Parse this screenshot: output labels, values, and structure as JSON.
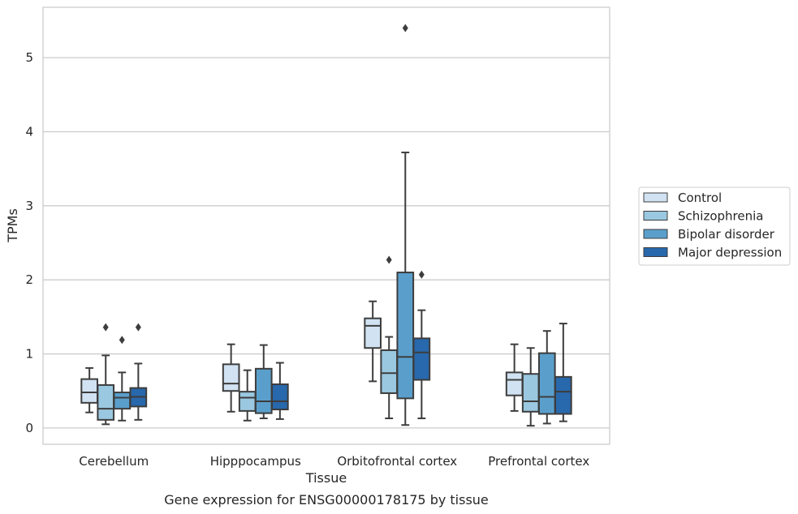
{
  "caption": "Gene expression for ENSG00000178175 by tissue",
  "chart_data": {
    "type": "box",
    "xlabel": "Tissue",
    "ylabel": "TPMs",
    "categories": [
      "Cerebellum",
      "Hipppocampus",
      "Orbitofrontal cortex",
      "Prefrontal cortex"
    ],
    "yticks": [
      0,
      1,
      2,
      3,
      4,
      5
    ],
    "ylim": [
      -0.22,
      5.68
    ],
    "grid": true,
    "legend_position": "right",
    "series": [
      {
        "name": "Control",
        "color": "#d1e2f2",
        "boxes": [
          {
            "whisker_low": 0.21,
            "q1": 0.34,
            "median": 0.48,
            "q3": 0.66,
            "whisker_high": 0.81,
            "outliers": []
          },
          {
            "whisker_low": 0.22,
            "q1": 0.5,
            "median": 0.6,
            "q3": 0.86,
            "whisker_high": 1.13,
            "outliers": []
          },
          {
            "whisker_low": 0.63,
            "q1": 1.08,
            "median": 1.38,
            "q3": 1.48,
            "whisker_high": 1.71,
            "outliers": []
          },
          {
            "whisker_low": 0.23,
            "q1": 0.44,
            "median": 0.65,
            "q3": 0.75,
            "whisker_high": 1.13,
            "outliers": []
          }
        ]
      },
      {
        "name": "Schizophrenia",
        "color": "#9ac8e0",
        "boxes": [
          {
            "whisker_low": 0.05,
            "q1": 0.11,
            "median": 0.26,
            "q3": 0.58,
            "whisker_high": 0.98,
            "outliers": [
              1.36
            ]
          },
          {
            "whisker_low": 0.1,
            "q1": 0.23,
            "median": 0.41,
            "q3": 0.49,
            "whisker_high": 0.78,
            "outliers": []
          },
          {
            "whisker_low": 0.13,
            "q1": 0.47,
            "median": 0.74,
            "q3": 1.05,
            "whisker_high": 1.23,
            "outliers": [
              2.27
            ]
          },
          {
            "whisker_low": 0.03,
            "q1": 0.22,
            "median": 0.36,
            "q3": 0.73,
            "whisker_high": 1.08,
            "outliers": []
          }
        ]
      },
      {
        "name": "Bipolar disorder",
        "color": "#5a9fcc",
        "boxes": [
          {
            "whisker_low": 0.1,
            "q1": 0.26,
            "median": 0.41,
            "q3": 0.48,
            "whisker_high": 0.75,
            "outliers": [
              1.19
            ]
          },
          {
            "whisker_low": 0.13,
            "q1": 0.2,
            "median": 0.36,
            "q3": 0.8,
            "whisker_high": 1.12,
            "outliers": []
          },
          {
            "whisker_low": 0.04,
            "q1": 0.4,
            "median": 0.96,
            "q3": 2.1,
            "whisker_high": 3.72,
            "outliers": [
              5.4
            ]
          },
          {
            "whisker_low": 0.06,
            "q1": 0.19,
            "median": 0.42,
            "q3": 1.01,
            "whisker_high": 1.31,
            "outliers": []
          }
        ]
      },
      {
        "name": "Major depression",
        "color": "#2868ac",
        "boxes": [
          {
            "whisker_low": 0.11,
            "q1": 0.29,
            "median": 0.42,
            "q3": 0.54,
            "whisker_high": 0.87,
            "outliers": [
              1.36
            ]
          },
          {
            "whisker_low": 0.12,
            "q1": 0.25,
            "median": 0.36,
            "q3": 0.59,
            "whisker_high": 0.88,
            "outliers": []
          },
          {
            "whisker_low": 0.13,
            "q1": 0.65,
            "median": 1.02,
            "q3": 1.21,
            "whisker_high": 1.59,
            "outliers": [
              2.07
            ]
          },
          {
            "whisker_low": 0.09,
            "q1": 0.19,
            "median": 0.49,
            "q3": 0.69,
            "whisker_high": 1.41,
            "outliers": []
          }
        ]
      }
    ]
  }
}
